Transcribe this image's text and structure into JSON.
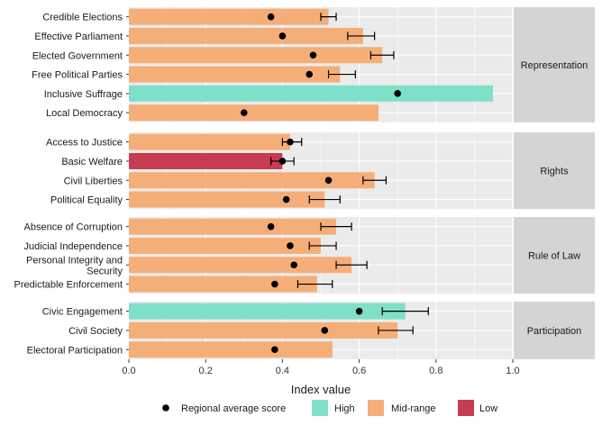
{
  "chart_data": {
    "type": "bar",
    "orientation": "horizontal",
    "xlabel": "Index value",
    "xlim": [
      0,
      1.0
    ],
    "xticks": [
      "0.0",
      "0.2",
      "0.4",
      "0.6",
      "0.8",
      "1.0"
    ],
    "panels": [
      {
        "label": "Representation",
        "rows": [
          {
            "category": "Credible Elections",
            "value": 0.52,
            "level": "Mid-range",
            "regional_avg": 0.37,
            "err_low": 0.5,
            "err_high": 0.54
          },
          {
            "category": "Effective Parliament",
            "value": 0.61,
            "level": "Mid-range",
            "regional_avg": 0.4,
            "err_low": 0.57,
            "err_high": 0.64
          },
          {
            "category": "Elected Government",
            "value": 0.66,
            "level": "Mid-range",
            "regional_avg": 0.48,
            "err_low": 0.63,
            "err_high": 0.69
          },
          {
            "category": "Free Political Parties",
            "value": 0.55,
            "level": "Mid-range",
            "regional_avg": 0.47,
            "err_low": 0.52,
            "err_high": 0.59
          },
          {
            "category": "Inclusive Suffrage",
            "value": 0.96,
            "level": "High",
            "regional_avg": 0.7
          },
          {
            "category": "Local Democracy",
            "value": 0.65,
            "level": "Mid-range",
            "regional_avg": 0.3
          }
        ]
      },
      {
        "label": "Rights",
        "rows": [
          {
            "category": "Access to Justice",
            "value": 0.42,
            "level": "Mid-range",
            "regional_avg": 0.42,
            "err_low": 0.4,
            "err_high": 0.45
          },
          {
            "category": "Basic Welfare",
            "value": 0.4,
            "level": "Low",
            "regional_avg": 0.4,
            "err_low": 0.37,
            "err_high": 0.43
          },
          {
            "category": "Civil Liberties",
            "value": 0.64,
            "level": "Mid-range",
            "regional_avg": 0.52,
            "err_low": 0.61,
            "err_high": 0.67
          },
          {
            "category": "Political Equality",
            "value": 0.51,
            "level": "Mid-range",
            "regional_avg": 0.41,
            "err_low": 0.47,
            "err_high": 0.55
          }
        ]
      },
      {
        "label": "Rule of Law",
        "rows": [
          {
            "category": "Absence of Corruption",
            "value": 0.54,
            "level": "Mid-range",
            "regional_avg": 0.37,
            "err_low": 0.5,
            "err_high": 0.58
          },
          {
            "category": "Judicial Independence",
            "value": 0.5,
            "level": "Mid-range",
            "regional_avg": 0.42,
            "err_low": 0.47,
            "err_high": 0.54
          },
          {
            "category": "Personal Integrity and Security",
            "value": 0.58,
            "level": "Mid-range",
            "regional_avg": 0.43,
            "err_low": 0.54,
            "err_high": 0.62
          },
          {
            "category": "Predictable Enforcement",
            "value": 0.49,
            "level": "Mid-range",
            "regional_avg": 0.38,
            "err_low": 0.44,
            "err_high": 0.53
          }
        ]
      },
      {
        "label": "Participation",
        "rows": [
          {
            "category": "Civic Engagement",
            "value": 0.72,
            "level": "High",
            "regional_avg": 0.6,
            "err_low": 0.66,
            "err_high": 0.78
          },
          {
            "category": "Civil Society",
            "value": 0.7,
            "level": "Mid-range",
            "regional_avg": 0.51,
            "err_low": 0.65,
            "err_high": 0.74
          },
          {
            "category": "Electoral Participation",
            "value": 0.53,
            "level": "Mid-range",
            "regional_avg": 0.38
          }
        ]
      }
    ],
    "legend": {
      "placement": "bottom",
      "point_label": "Regional average score",
      "items": [
        {
          "label": "High",
          "color": "#7fe0c9"
        },
        {
          "label": "Mid-range",
          "color": "#f5ae78"
        },
        {
          "label": "Low",
          "color": "#c63c51"
        }
      ]
    },
    "colors": {
      "High": "#7fe0c9",
      "Mid-range": "#f5ae78",
      "Low": "#c63c51",
      "panel_background": "#ebebeb",
      "strip_background": "#d4d4d4",
      "gridline": "#ffffff",
      "point": "#000000"
    }
  }
}
